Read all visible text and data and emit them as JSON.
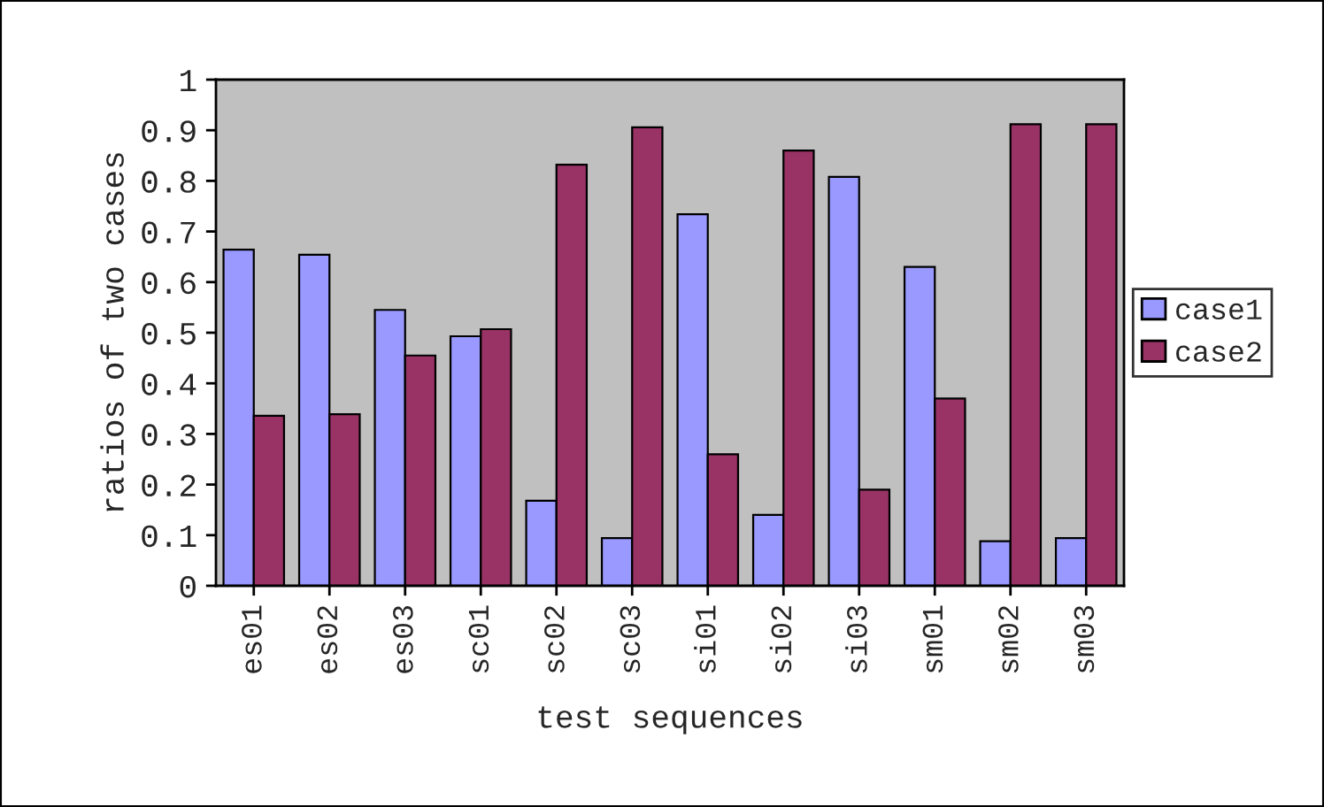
{
  "chart_data": {
    "type": "bar",
    "xlabel": "test sequences",
    "ylabel": "ratios of two cases",
    "categories": [
      "es01",
      "es02",
      "es03",
      "sc01",
      "sc02",
      "sc03",
      "si01",
      "si02",
      "si03",
      "sm01",
      "sm02",
      "sm03"
    ],
    "series": [
      {
        "name": "case1",
        "color": "#9999ff",
        "values": [
          0.664,
          0.654,
          0.545,
          0.493,
          0.168,
          0.094,
          0.734,
          0.14,
          0.808,
          0.63,
          0.088,
          0.094
        ]
      },
      {
        "name": "case2",
        "color": "#993366",
        "values": [
          0.336,
          0.339,
          0.455,
          0.507,
          0.832,
          0.906,
          0.26,
          0.86,
          0.19,
          0.37,
          0.912,
          0.912
        ]
      }
    ],
    "ylim": [
      0,
      1
    ],
    "yticks": [
      0,
      0.1,
      0.2,
      0.3,
      0.4,
      0.5,
      0.6,
      0.7,
      0.8,
      0.9,
      1
    ],
    "grid": false,
    "legend": "right"
  }
}
